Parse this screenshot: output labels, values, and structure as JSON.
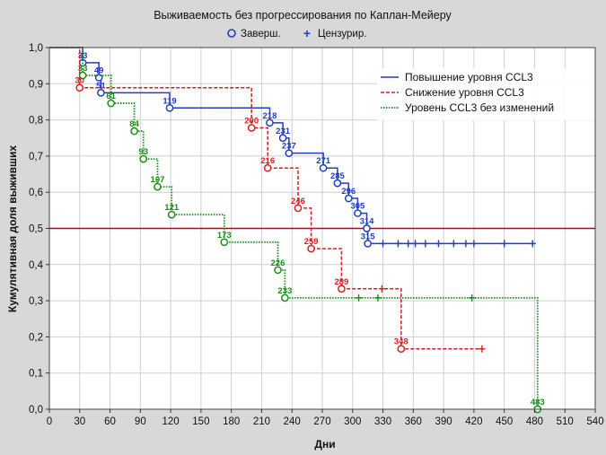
{
  "chart_data": {
    "type": "line",
    "subtype": "kaplan-meier-step",
    "title": "Выживаемость без прогрессирования по Каплан-Мейеру",
    "marker_legend": [
      {
        "symbol": "o",
        "label": "Заверш."
      },
      {
        "symbol": "+",
        "label": "Цензурир."
      }
    ],
    "xlabel": "Дни",
    "ylabel": "Кумулятивная доля выживших",
    "xlim": [
      0,
      540
    ],
    "ylim": [
      0,
      1.0
    ],
    "xticks": [
      0,
      30,
      60,
      90,
      120,
      150,
      180,
      210,
      240,
      270,
      300,
      330,
      360,
      390,
      420,
      450,
      480,
      510,
      540
    ],
    "yticks": [
      "0,0",
      "0,1",
      "0,2",
      "0,3",
      "0,4",
      "0,5",
      "0,6",
      "0,7",
      "0,8",
      "0,9",
      "1,0"
    ],
    "reference_line": {
      "y": 0.5,
      "color": "#8b1a1a"
    },
    "legend_position": "top-right",
    "series": [
      {
        "name": "Повышение уровня CCL3",
        "color": "#1f3fbf",
        "dash": "solid",
        "events": [
          {
            "x": 33,
            "y": 0.958,
            "label": "33"
          },
          {
            "x": 49,
            "y": 0.917,
            "label": "49"
          },
          {
            "x": 51,
            "y": 0.875,
            "label": "51"
          },
          {
            "x": 119,
            "y": 0.833,
            "label": "119"
          },
          {
            "x": 218,
            "y": 0.792,
            "label": "218"
          },
          {
            "x": 231,
            "y": 0.75,
            "label": "231"
          },
          {
            "x": 237,
            "y": 0.708,
            "label": "237"
          },
          {
            "x": 271,
            "y": 0.667,
            "label": "271"
          },
          {
            "x": 285,
            "y": 0.625,
            "label": "285"
          },
          {
            "x": 296,
            "y": 0.583,
            "label": "296"
          },
          {
            "x": 305,
            "y": 0.542,
            "label": "305"
          },
          {
            "x": 314,
            "y": 0.5,
            "label": "314"
          },
          {
            "x": 315,
            "y": 0.458,
            "label": "315"
          }
        ],
        "censored": [
          330,
          345,
          355,
          362,
          372,
          385,
          400,
          412,
          420,
          450,
          478
        ],
        "end_x": 481
      },
      {
        "name": "Снижение уровня CCL3",
        "color": "#d81e1e",
        "dash": "dashed",
        "events": [
          {
            "x": 30,
            "y": 0.889,
            "label": "30"
          },
          {
            "x": 200,
            "y": 0.778,
            "label": "200"
          },
          {
            "x": 216,
            "y": 0.667,
            "label": "216"
          },
          {
            "x": 246,
            "y": 0.556,
            "label": "246"
          },
          {
            "x": 259,
            "y": 0.444,
            "label": "259"
          },
          {
            "x": 289,
            "y": 0.333,
            "label": "289"
          },
          {
            "x": 348,
            "y": 0.167,
            "label": "348"
          }
        ],
        "censored": [
          329,
          428
        ],
        "end_x": 432
      },
      {
        "name": "Уровень CCL3 без изменений",
        "color": "#1a8f1a",
        "dash": "dotted",
        "events": [
          {
            "x": 33,
            "y": 0.923,
            "label": "33"
          },
          {
            "x": 61,
            "y": 0.846,
            "label": "61"
          },
          {
            "x": 84,
            "y": 0.769,
            "label": "84"
          },
          {
            "x": 93,
            "y": 0.692,
            "label": "93"
          },
          {
            "x": 107,
            "y": 0.615,
            "label": "107"
          },
          {
            "x": 121,
            "y": 0.538,
            "label": "121"
          },
          {
            "x": 173,
            "y": 0.462,
            "label": "173"
          },
          {
            "x": 226,
            "y": 0.385,
            "label": "226"
          },
          {
            "x": 233,
            "y": 0.308,
            "label": "233"
          },
          {
            "x": 483,
            "y": 0.0,
            "label": "483"
          }
        ],
        "censored": [
          306,
          325,
          418
        ],
        "end_x": 483
      }
    ]
  }
}
